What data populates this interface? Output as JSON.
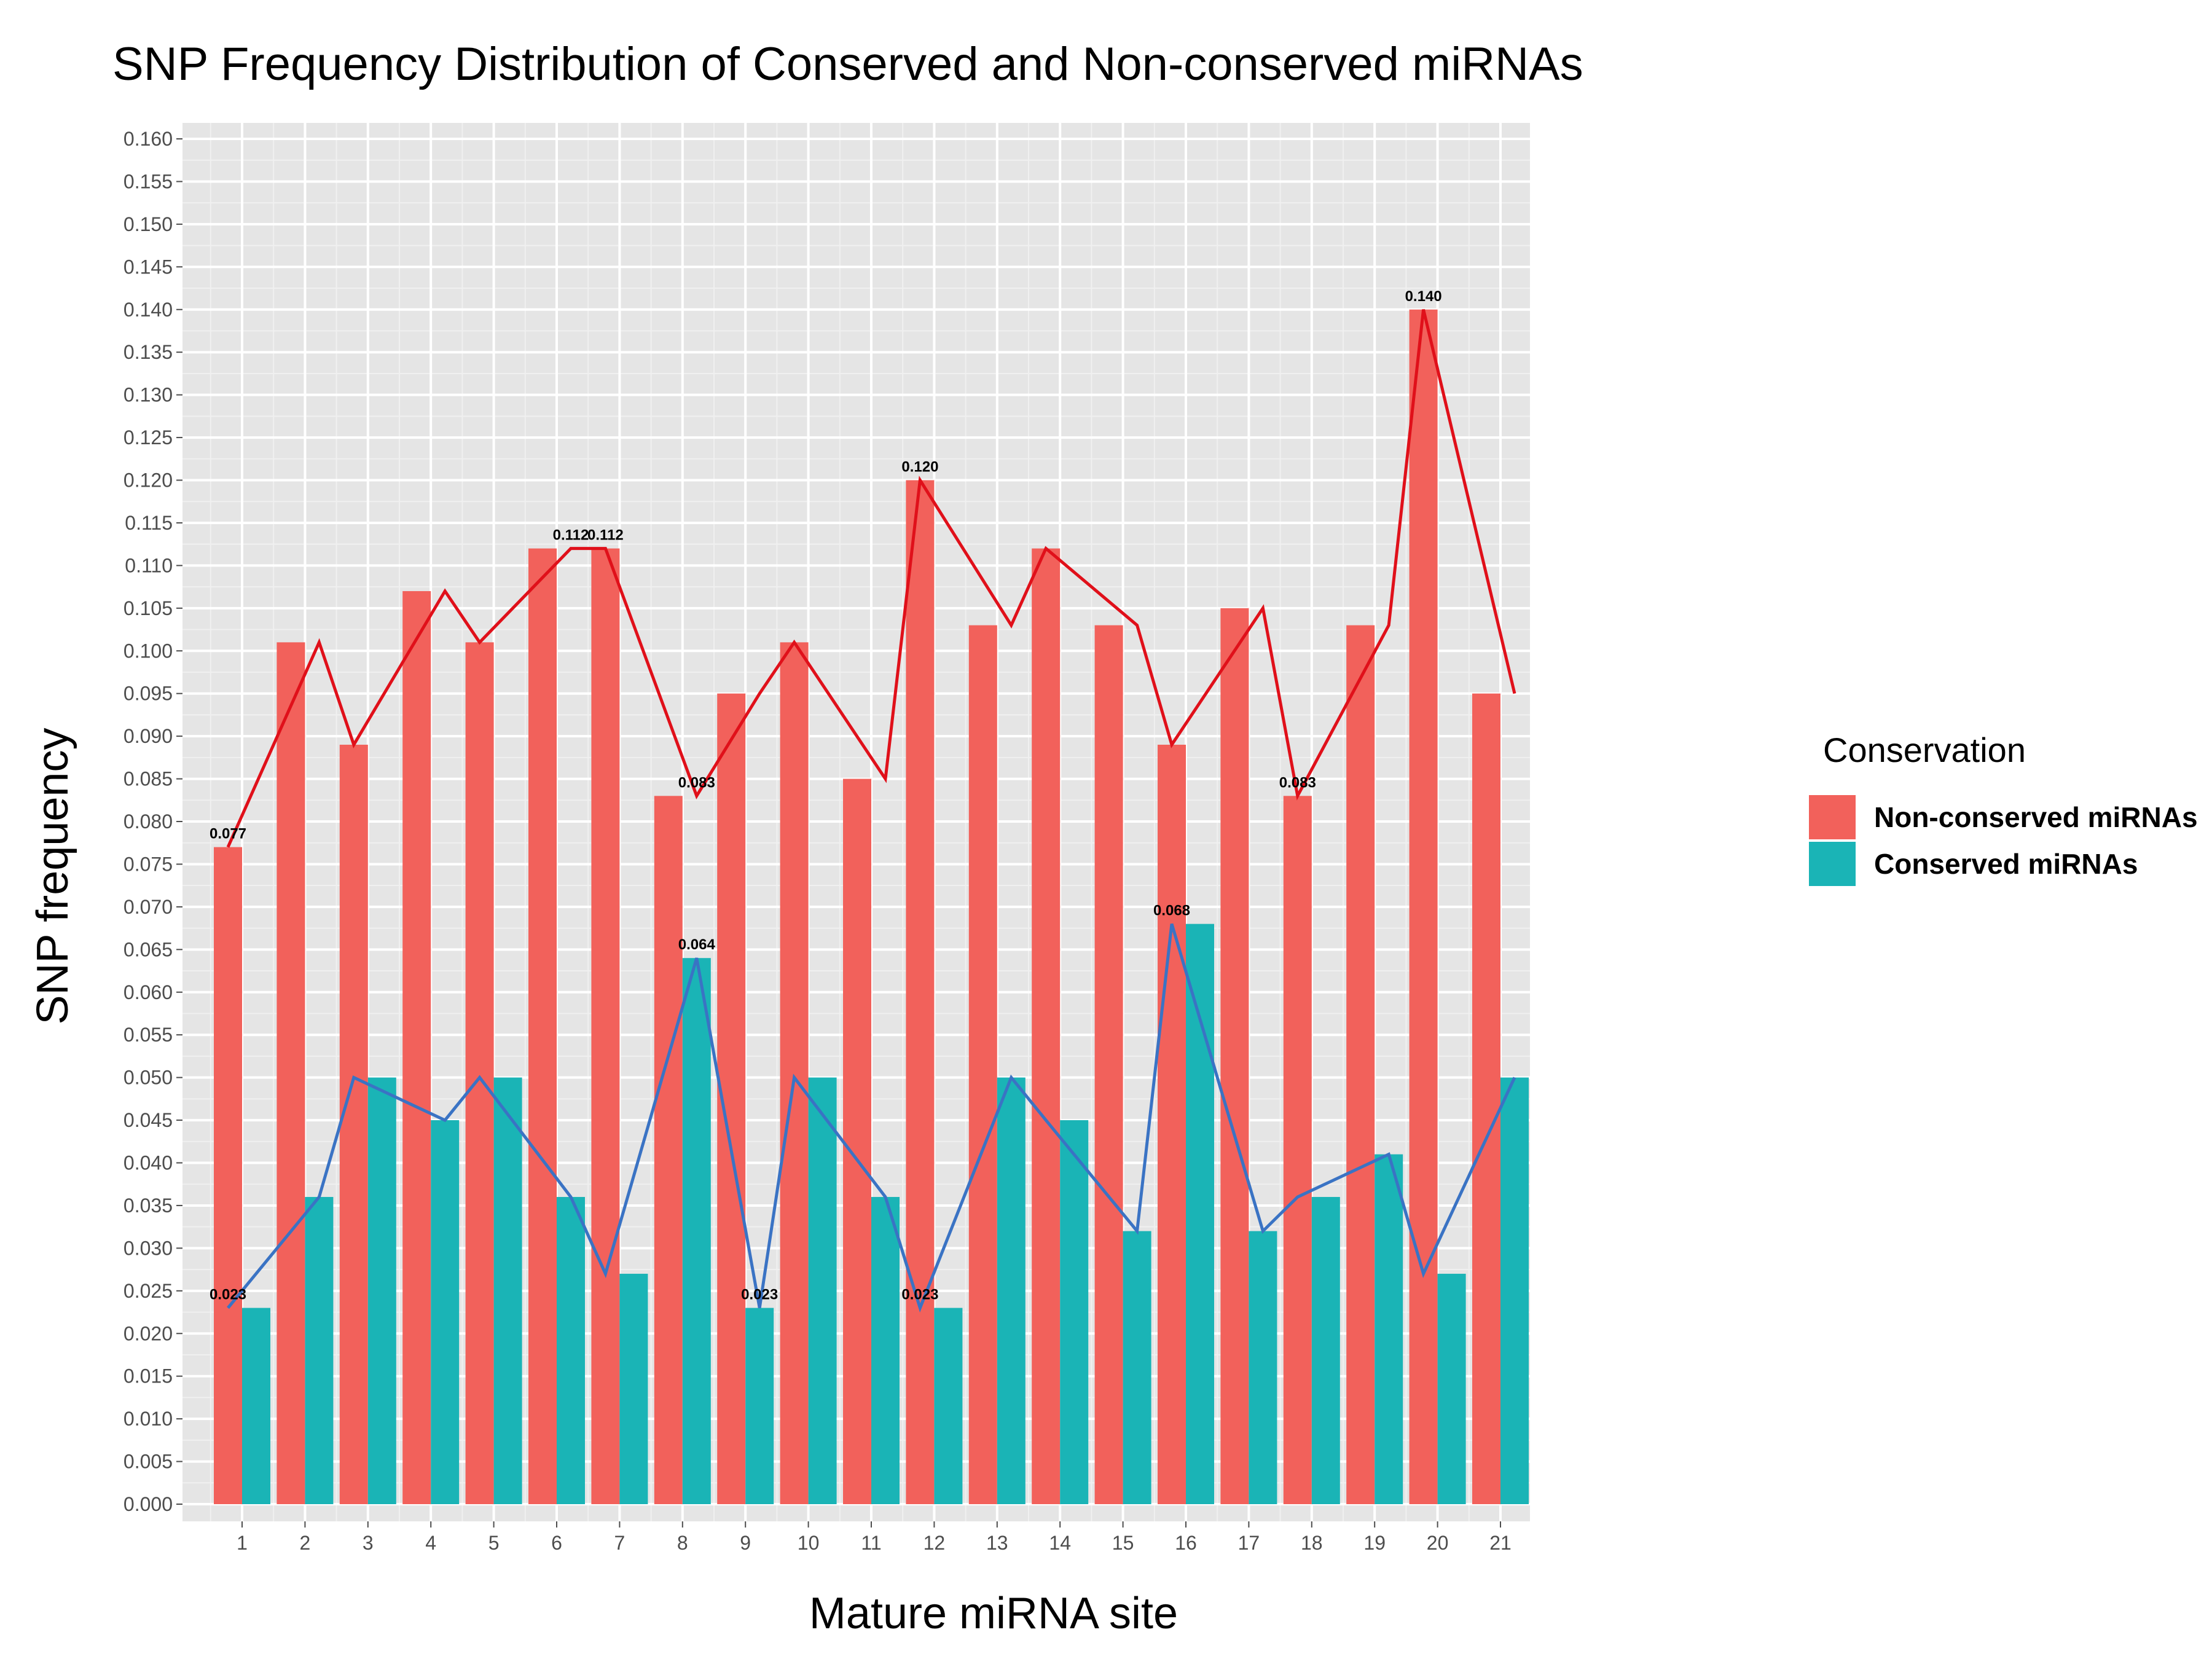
{
  "chart_data": {
    "type": "bar",
    "title": "SNP Frequency Distribution of Conserved and Non-conserved miRNAs",
    "xlabel": "Mature miRNA site",
    "ylabel": "SNP frequency",
    "categories": [
      "1",
      "2",
      "3",
      "4",
      "5",
      "6",
      "7",
      "8",
      "9",
      "10",
      "11",
      "12",
      "13",
      "14",
      "15",
      "16",
      "17",
      "18",
      "19",
      "20",
      "21"
    ],
    "ylim": [
      0,
      0.16
    ],
    "ytick_step": 0.005,
    "yticks": [
      "0.000",
      "0.005",
      "0.010",
      "0.015",
      "0.020",
      "0.025",
      "0.030",
      "0.035",
      "0.040",
      "0.045",
      "0.050",
      "0.055",
      "0.060",
      "0.065",
      "0.070",
      "0.075",
      "0.080",
      "0.085",
      "0.090",
      "0.095",
      "0.100",
      "0.105",
      "0.110",
      "0.115",
      "0.120",
      "0.125",
      "0.130",
      "0.135",
      "0.140",
      "0.145",
      "0.150",
      "0.155",
      "0.160"
    ],
    "grid": true,
    "legend": {
      "title": "Conservation",
      "position": "right"
    },
    "series": [
      {
        "name": "Non-conserved miRNAs",
        "bar_color": "#f2615b",
        "line_color": "#e0101a",
        "values": [
          0.077,
          0.101,
          0.089,
          0.107,
          0.101,
          0.112,
          0.112,
          0.083,
          0.095,
          0.101,
          0.085,
          0.12,
          0.103,
          0.112,
          0.103,
          0.089,
          0.105,
          0.083,
          0.103,
          0.14,
          0.095
        ]
      },
      {
        "name": "Conserved miRNAs",
        "bar_color": "#1ab4b6",
        "line_color": "#3a73c4",
        "values": [
          0.023,
          0.036,
          0.05,
          0.045,
          0.05,
          0.036,
          0.027,
          0.064,
          0.023,
          0.05,
          0.036,
          0.023,
          0.05,
          0.045,
          0.032,
          0.068,
          0.032,
          0.036,
          0.041,
          0.027,
          0.05
        ]
      }
    ],
    "line_x_offsets": [
      -1,
      1,
      -1,
      1,
      -1,
      1,
      -1,
      1,
      1,
      -1,
      1,
      -1,
      1,
      -1,
      1,
      -1,
      1,
      -1,
      1,
      -1,
      1
    ],
    "annotations": [
      {
        "series": 0,
        "index": 0,
        "text": "0.077"
      },
      {
        "series": 0,
        "index": 5,
        "text": "0.112"
      },
      {
        "series": 0,
        "index": 6,
        "text": "0.112"
      },
      {
        "series": 0,
        "index": 7,
        "text": "0.083"
      },
      {
        "series": 0,
        "index": 11,
        "text": "0.120"
      },
      {
        "series": 0,
        "index": 17,
        "text": "0.083"
      },
      {
        "series": 0,
        "index": 19,
        "text": "0.140"
      },
      {
        "series": 1,
        "index": 0,
        "text": "0.023"
      },
      {
        "series": 1,
        "index": 7,
        "text": "0.064"
      },
      {
        "series": 1,
        "index": 8,
        "text": "0.023"
      },
      {
        "series": 1,
        "index": 11,
        "text": "0.023"
      },
      {
        "series": 1,
        "index": 15,
        "text": "0.068"
      }
    ],
    "colors": {
      "panel_bg": "#e5e5e5",
      "grid_major": "#ffffff",
      "grid_minor": "#f0f0f0"
    }
  }
}
